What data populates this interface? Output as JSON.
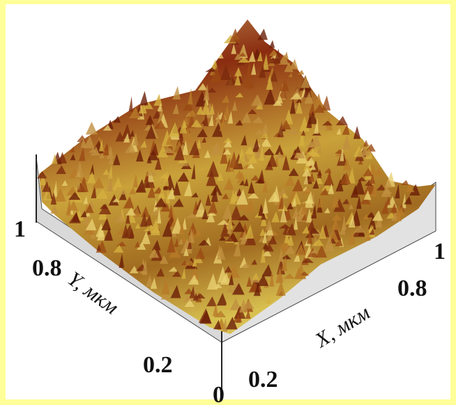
{
  "y_axis": {
    "label": "Y, мкм",
    "ticks": [
      "1",
      "0.8",
      "0.2"
    ]
  },
  "x_axis": {
    "label": "X, мкм",
    "ticks": [
      "0.2",
      "0.8",
      "1"
    ]
  },
  "origin_label": "0"
}
